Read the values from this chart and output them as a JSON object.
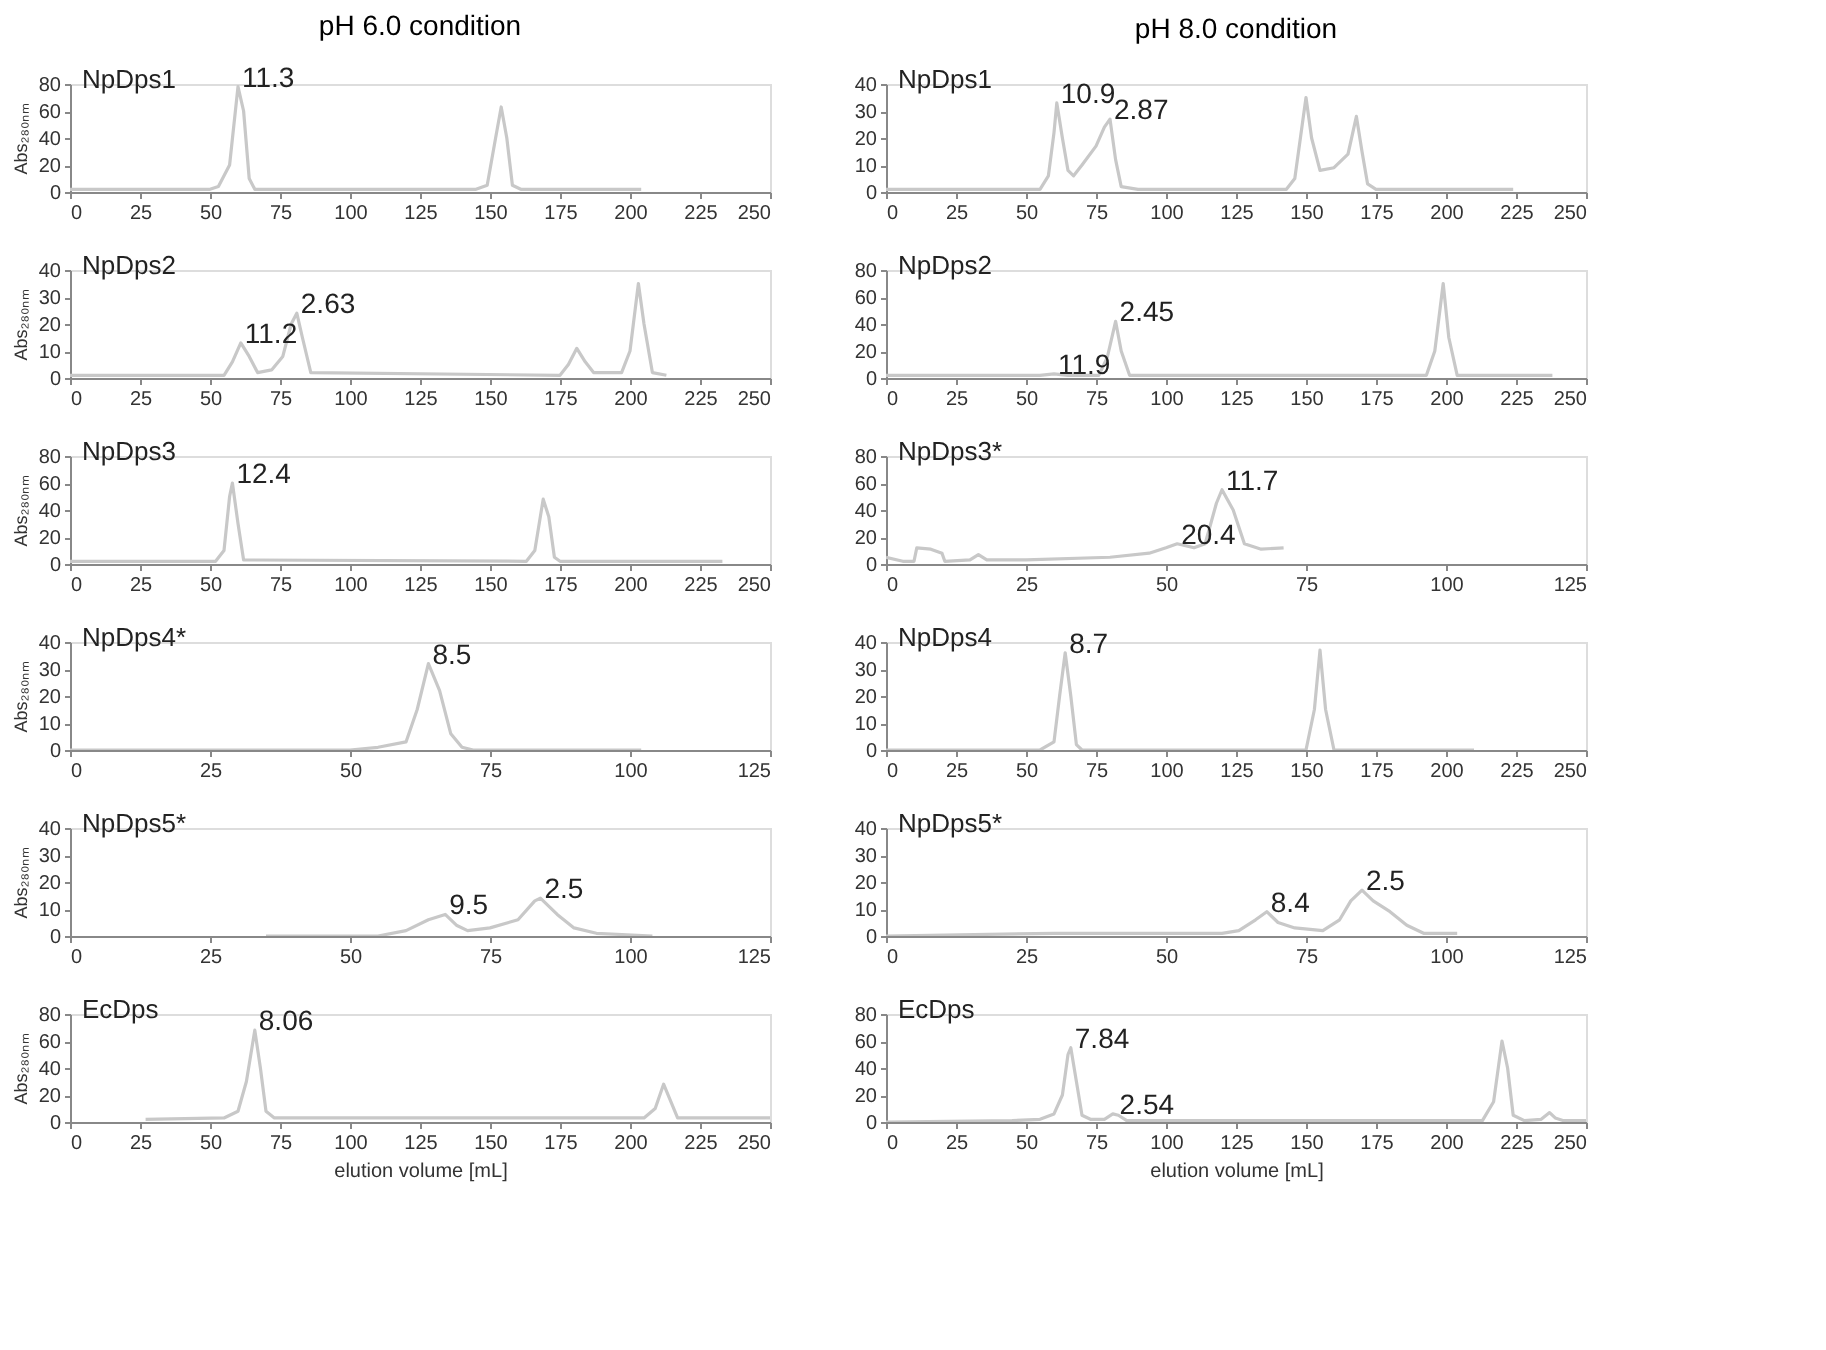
{
  "chart_data": [
    {
      "type": "line",
      "title": "pH 6.0 condition",
      "ylabel": "Abs₂₈₀ₙₘ",
      "color": "#c8c8c8",
      "grid": false,
      "xlim": [
        0,
        250
      ],
      "xticks": [
        0,
        25,
        50,
        75,
        100,
        125,
        150,
        175,
        200,
        225,
        250
      ],
      "ylim": [
        0,
        80
      ],
      "yticks": [
        0,
        20,
        40,
        60,
        80
      ],
      "annotations": [
        "NpDps1",
        {
          "text": "11.3",
          "x": 60,
          "y": 78
        }
      ],
      "x": [
        0,
        50,
        53,
        57,
        60,
        62,
        64,
        66,
        145,
        149,
        152,
        154,
        156,
        158,
        161,
        204
      ],
      "values": [
        2,
        2,
        4,
        20,
        78,
        60,
        10,
        2,
        2,
        5,
        40,
        63,
        40,
        5,
        2,
        2
      ]
    },
    {
      "type": "line",
      "title": "pH 8.0 condition",
      "color": "#c8c8c8",
      "grid": false,
      "xlim": [
        0,
        250
      ],
      "xticks": [
        0,
        25,
        50,
        75,
        100,
        125,
        150,
        175,
        200,
        225,
        250
      ],
      "ylim": [
        0,
        40
      ],
      "yticks": [
        0,
        10,
        20,
        30,
        40
      ],
      "annotations": [
        "NpDps1",
        {
          "text": "10.9",
          "x": 61,
          "y": 33
        },
        {
          "text": "2.87",
          "x": 80,
          "y": 27
        }
      ],
      "x": [
        0,
        55,
        58,
        60,
        61,
        63,
        65,
        67,
        70,
        75,
        78,
        80,
        82,
        84,
        90,
        143,
        146,
        148,
        150,
        152,
        155,
        160,
        165,
        168,
        170,
        172,
        175,
        224
      ],
      "values": [
        1,
        1,
        6,
        22,
        33,
        20,
        8,
        6,
        10,
        17,
        24,
        27,
        12,
        2,
        1,
        1,
        5,
        20,
        35,
        20,
        8,
        9,
        14,
        28,
        15,
        3,
        1,
        1
      ]
    },
    {
      "type": "line",
      "ylabel": "Abs₂₈₀ₙₘ",
      "color": "#c8c8c8",
      "grid": false,
      "xlim": [
        0,
        250
      ],
      "xticks": [
        0,
        25,
        50,
        75,
        100,
        125,
        150,
        175,
        200,
        225,
        250
      ],
      "ylim": [
        0,
        40
      ],
      "yticks": [
        0,
        10,
        20,
        30,
        40
      ],
      "annotations": [
        "NpDps2",
        {
          "text": "11.2",
          "x": 61,
          "y": 13
        },
        {
          "text": "2.63",
          "x": 81,
          "y": 24
        }
      ],
      "x": [
        0,
        55,
        58,
        61,
        64,
        67,
        72,
        76,
        79,
        81,
        83,
        86,
        175,
        178,
        181,
        184,
        187,
        197,
        200,
        203,
        205,
        208,
        213
      ],
      "values": [
        1,
        1,
        6,
        13,
        8,
        2,
        3,
        8,
        20,
        24,
        15,
        2,
        1,
        5,
        11,
        6,
        2,
        2,
        10,
        35,
        20,
        2,
        1
      ]
    },
    {
      "type": "line",
      "color": "#c8c8c8",
      "grid": false,
      "xlim": [
        0,
        250
      ],
      "xticks": [
        0,
        25,
        50,
        75,
        100,
        125,
        150,
        175,
        200,
        225,
        250
      ],
      "ylim": [
        0,
        80
      ],
      "yticks": [
        0,
        20,
        40,
        60,
        80
      ],
      "annotations": [
        "NpDps2",
        {
          "text": "11.9",
          "x": 60,
          "y": 3
        },
        {
          "text": "2.45",
          "x": 82,
          "y": 42
        }
      ],
      "x": [
        0,
        55,
        60,
        65,
        76,
        79,
        82,
        84,
        87,
        193,
        196,
        199,
        201,
        204,
        238
      ],
      "values": [
        2,
        2,
        3,
        2,
        2,
        15,
        42,
        20,
        2,
        2,
        20,
        70,
        30,
        2,
        2
      ]
    },
    {
      "type": "line",
      "ylabel": "Abs₂₈₀ₙₘ",
      "color": "#c8c8c8",
      "grid": false,
      "xlim": [
        0,
        250
      ],
      "xticks": [
        0,
        25,
        50,
        75,
        100,
        125,
        150,
        175,
        200,
        225,
        250
      ],
      "ylim": [
        0,
        80
      ],
      "yticks": [
        0,
        20,
        40,
        60,
        80
      ],
      "annotations": [
        "NpDps3",
        {
          "text": "12.4",
          "x": 58,
          "y": 60
        }
      ],
      "x": [
        0,
        52,
        55,
        57,
        58,
        60,
        62,
        163,
        166,
        169,
        171,
        173,
        175,
        233
      ],
      "values": [
        2,
        2,
        10,
        50,
        60,
        30,
        3,
        2,
        10,
        48,
        35,
        5,
        2,
        2
      ]
    },
    {
      "type": "line",
      "color": "#c8c8c8",
      "grid": false,
      "xlim": [
        0,
        125
      ],
      "xticks": [
        0,
        25,
        50,
        75,
        100,
        125
      ],
      "ylim": [
        0,
        80
      ],
      "yticks": [
        0,
        20,
        40,
        60,
        80
      ],
      "annotations": [
        "NpDps3*",
        {
          "text": "20.4",
          "x": 52,
          "y": 15
        },
        {
          "text": "11.7",
          "x": 60,
          "y": 55
        }
      ],
      "x": [
        0,
        3,
        5,
        5.5,
        8,
        10,
        10.5,
        15,
        16.5,
        18,
        25,
        40,
        47,
        50,
        52,
        55,
        57,
        59,
        60,
        62,
        64,
        67,
        71
      ],
      "values": [
        5,
        2,
        2,
        12,
        11,
        8,
        2,
        3,
        7,
        3,
        3,
        5,
        8,
        12,
        15,
        12,
        15,
        45,
        55,
        40,
        15,
        11,
        12
      ]
    },
    {
      "type": "line",
      "ylabel": "Abs₂₈₀ₙₘ",
      "color": "#c8c8c8",
      "grid": false,
      "xlim": [
        0,
        125
      ],
      "xticks": [
        0,
        25,
        50,
        75,
        100,
        125
      ],
      "ylim": [
        0,
        40
      ],
      "yticks": [
        0,
        10,
        20,
        30,
        40
      ],
      "annotations": [
        "NpDps4*",
        {
          "text": "8.5",
          "x": 64,
          "y": 32
        }
      ],
      "x": [
        0,
        50,
        55,
        60,
        62,
        64,
        66,
        68,
        70,
        72,
        102
      ],
      "values": [
        0,
        0,
        1,
        3,
        15,
        32,
        22,
        6,
        1,
        0,
        0
      ]
    },
    {
      "type": "line",
      "color": "#c8c8c8",
      "grid": false,
      "xlim": [
        0,
        250
      ],
      "xticks": [
        0,
        25,
        50,
        75,
        100,
        125,
        150,
        175,
        200,
        225,
        250
      ],
      "ylim": [
        0,
        40
      ],
      "yticks": [
        0,
        10,
        20,
        30,
        40
      ],
      "annotations": [
        "NpDps4",
        {
          "text": "8.7",
          "x": 64,
          "y": 36
        }
      ],
      "x": [
        0,
        55,
        60,
        62,
        64,
        66,
        68,
        70,
        150,
        153,
        155,
        157,
        160,
        210
      ],
      "values": [
        0,
        0,
        3,
        20,
        36,
        20,
        2,
        0,
        0,
        15,
        37,
        15,
        0,
        0
      ]
    },
    {
      "type": "line",
      "ylabel": "Abs₂₈₀ₙₘ",
      "color": "#c8c8c8",
      "grid": false,
      "xlim": [
        0,
        125
      ],
      "xticks": [
        0,
        25,
        50,
        75,
        100,
        125
      ],
      "ylim": [
        0,
        40
      ],
      "yticks": [
        0,
        10,
        20,
        30,
        40
      ],
      "annotations": [
        "NpDps5*",
        {
          "text": "9.5",
          "x": 67,
          "y": 8
        },
        {
          "text": "2.5",
          "x": 84,
          "y": 14
        }
      ],
      "x": [
        35,
        55,
        60,
        64,
        67,
        69,
        71,
        75,
        80,
        83,
        84,
        87,
        90,
        94,
        104
      ],
      "values": [
        0,
        0,
        2,
        6,
        8,
        4,
        2,
        3,
        6,
        13,
        14,
        8,
        3,
        1,
        0
      ]
    },
    {
      "type": "line",
      "color": "#c8c8c8",
      "grid": false,
      "xlim": [
        0,
        125
      ],
      "xticks": [
        0,
        25,
        50,
        75,
        100,
        125
      ],
      "ylim": [
        0,
        40
      ],
      "yticks": [
        0,
        10,
        20,
        30,
        40
      ],
      "annotations": [
        "NpDps5*",
        {
          "text": "8.4",
          "x": 68,
          "y": 9
        },
        {
          "text": "2.5",
          "x": 85,
          "y": 17
        }
      ],
      "x": [
        0,
        30,
        60,
        63,
        66,
        68,
        70,
        73,
        78,
        81,
        83,
        85,
        87,
        90,
        93,
        96,
        102
      ],
      "values": [
        0,
        1,
        1,
        2,
        6,
        9,
        5,
        3,
        2,
        6,
        13,
        17,
        13,
        9,
        4,
        1,
        1
      ]
    },
    {
      "type": "line",
      "ylabel": "Abs₂₈₀ₙₘ",
      "xlabel": "elution volume [mL]",
      "color": "#c8c8c8",
      "grid": false,
      "xlim": [
        0,
        250
      ],
      "xticks": [
        0,
        25,
        50,
        75,
        100,
        125,
        150,
        175,
        200,
        225,
        250
      ],
      "ylim": [
        0,
        80
      ],
      "yticks": [
        0,
        20,
        40,
        60,
        80
      ],
      "annotations": [
        "EcDps",
        {
          "text": "8.06",
          "x": 66,
          "y": 68
        }
      ],
      "x": [
        27,
        55,
        60,
        63,
        66,
        68,
        70,
        73,
        205,
        209,
        212,
        214,
        217,
        250
      ],
      "values": [
        2,
        3,
        8,
        30,
        68,
        40,
        8,
        3,
        3,
        10,
        28,
        18,
        3,
        3
      ]
    },
    {
      "type": "line",
      "xlabel": "elution volume [mL]",
      "color": "#c8c8c8",
      "grid": false,
      "xlim": [
        0,
        250
      ],
      "xticks": [
        0,
        25,
        50,
        75,
        100,
        125,
        150,
        175,
        200,
        225,
        250
      ],
      "ylim": [
        0,
        80
      ],
      "yticks": [
        0,
        20,
        40,
        60,
        80
      ],
      "annotations": [
        "EcDps",
        {
          "text": "7.84",
          "x": 66,
          "y": 55
        },
        {
          "text": "2.54",
          "x": 82,
          "y": 6
        }
      ],
      "x": [
        0,
        45,
        55,
        60,
        63,
        65,
        66,
        68,
        70,
        73,
        78,
        81,
        83,
        86,
        213,
        217,
        220,
        222,
        224,
        228,
        234,
        237,
        239,
        242,
        250
      ],
      "values": [
        0,
        1,
        2,
        6,
        20,
        50,
        55,
        30,
        5,
        2,
        2,
        6,
        5,
        1,
        1,
        15,
        60,
        40,
        5,
        1,
        2,
        7,
        3,
        1,
        1
      ]
    }
  ]
}
